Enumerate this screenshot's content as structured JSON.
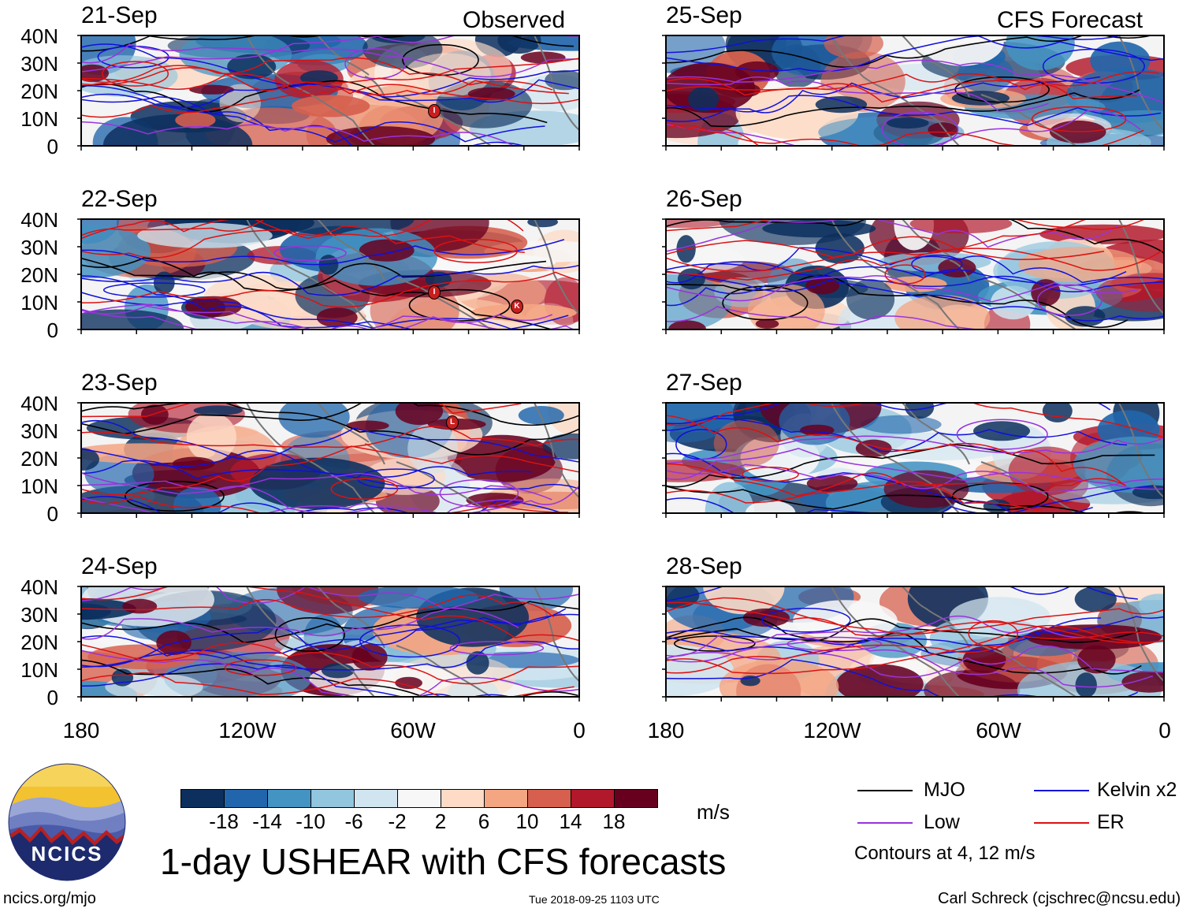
{
  "header": {
    "observed_label": "Observed",
    "forecast_label": "CFS Forecast"
  },
  "axes": {
    "lat_labels": [
      "40N",
      "30N",
      "20N",
      "10N",
      "0"
    ],
    "lon_labels": [
      "180",
      "120W",
      "60W",
      "0"
    ]
  },
  "panels_left": [
    {
      "date": "21-Sep"
    },
    {
      "date": "22-Sep"
    },
    {
      "date": "23-Sep"
    },
    {
      "date": "24-Sep"
    }
  ],
  "panels_right": [
    {
      "date": "25-Sep"
    },
    {
      "date": "26-Sep"
    },
    {
      "date": "27-Sep"
    },
    {
      "date": "28-Sep"
    }
  ],
  "colorbar": {
    "units": "m/s",
    "ticks": [
      "-18",
      "-14",
      "-10",
      "-6",
      "-2",
      "2",
      "6",
      "10",
      "14",
      "18"
    ],
    "colors": [
      "#0c2f5e",
      "#2166ac",
      "#4393c3",
      "#92c5de",
      "#d1e5f0",
      "#f7f7f7",
      "#fddbc7",
      "#f4a582",
      "#d6604d",
      "#b2182b",
      "#67001f"
    ]
  },
  "legend": {
    "items": [
      {
        "label": "MJO",
        "color": "#000000"
      },
      {
        "label": "Kelvin x2",
        "color": "#1010dd"
      },
      {
        "label": "Low",
        "color": "#9933dd"
      },
      {
        "label": "ER",
        "color": "#dd1111"
      }
    ],
    "note": "Contours at 4, 12 m/s"
  },
  "logo": {
    "text": "NCICS"
  },
  "title": "1-day USHEAR with CFS forecasts",
  "footer": {
    "left": "ncics.org/mjo",
    "center": "Tue 2018-09-25 1103 UTC",
    "right": "Carl Schreck (cjschrec@ncsu.edu)"
  },
  "storm_markers": [
    {
      "panel": "21-Sep",
      "label": "I"
    },
    {
      "panel": "22-Sep",
      "label": "I"
    },
    {
      "panel": "22-Sep",
      "label": "K"
    },
    {
      "panel": "23-Sep",
      "label": "L"
    }
  ]
}
